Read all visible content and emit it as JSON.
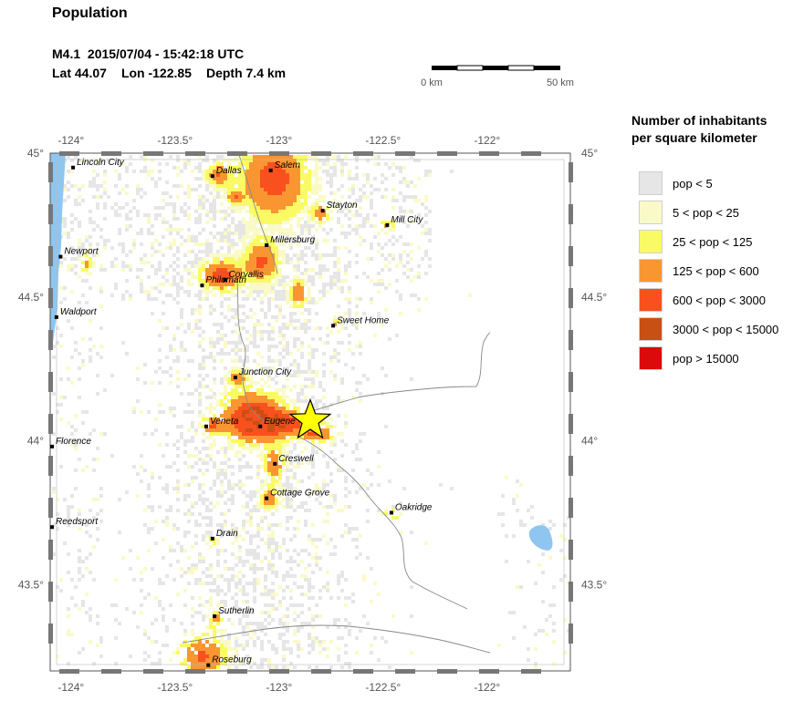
{
  "header": {
    "title": "Population",
    "magnitude": "M4.1",
    "datetime": "2015/07/04 - 15:42:18 UTC",
    "lat_text": "Lat 44.07",
    "lon_text": "Lon -122.85",
    "depth_text": "Depth  7.4 km"
  },
  "scale": {
    "left_label": "0 km",
    "right_label": "50 km",
    "length_km": 50
  },
  "map": {
    "lon_range": [
      -124.1,
      -121.6
    ],
    "lat_range": [
      43.2,
      45.0
    ],
    "lon_ticks": [
      -124.0,
      -123.5,
      -123.0,
      -122.5,
      -122.0
    ],
    "lon_tick_labels": [
      "-124°",
      "-123.5°",
      "-123°",
      "-122.5°",
      "-122°"
    ],
    "lat_ticks": [
      45.0,
      44.5,
      44.0,
      43.5
    ],
    "lat_tick_labels": [
      "45°",
      "44.5°",
      "44°",
      "43.5°"
    ],
    "epicenter": {
      "lon": -122.85,
      "lat": 44.07,
      "color": "#ffff00",
      "symbol": "star-icon"
    },
    "water_color": "#8ec6f0",
    "cities": [
      {
        "name": "Lincoln City",
        "lon": -123.99,
        "lat": 44.95
      },
      {
        "name": "Dallas",
        "lon": -123.32,
        "lat": 44.92
      },
      {
        "name": "Salem",
        "lon": -123.04,
        "lat": 44.94
      },
      {
        "name": "Stayton",
        "lon": -122.79,
        "lat": 44.8
      },
      {
        "name": "Mill City",
        "lon": -122.48,
        "lat": 44.75
      },
      {
        "name": "Newport",
        "lon": -124.05,
        "lat": 44.64
      },
      {
        "name": "Millersburg",
        "lon": -123.06,
        "lat": 44.68
      },
      {
        "name": "Corvallis",
        "lon": -123.26,
        "lat": 44.56
      },
      {
        "name": "Philomath",
        "lon": -123.37,
        "lat": 44.54
      },
      {
        "name": "Waldport",
        "lon": -124.07,
        "lat": 44.43
      },
      {
        "name": "Sweet Home",
        "lon": -122.74,
        "lat": 44.4
      },
      {
        "name": "Junction City",
        "lon": -123.21,
        "lat": 44.22
      },
      {
        "name": "Veneta",
        "lon": -123.35,
        "lat": 44.05
      },
      {
        "name": "Eugene",
        "lon": -123.09,
        "lat": 44.05
      },
      {
        "name": "Florence",
        "lon": -124.1,
        "lat": 43.98
      },
      {
        "name": "Creswell",
        "lon": -123.02,
        "lat": 43.92
      },
      {
        "name": "Cottage Grove",
        "lon": -123.06,
        "lat": 43.8
      },
      {
        "name": "Oakridge",
        "lon": -122.46,
        "lat": 43.75
      },
      {
        "name": "Reedsport",
        "lon": -124.1,
        "lat": 43.7
      },
      {
        "name": "Drain",
        "lon": -123.32,
        "lat": 43.66
      },
      {
        "name": "Sutherlin",
        "lon": -123.31,
        "lat": 43.39
      },
      {
        "name": "Roseburg",
        "lon": -123.34,
        "lat": 43.22
      }
    ]
  },
  "legend": {
    "title_line1": "Number of inhabitants",
    "title_line2": "per square kilometer",
    "items": [
      {
        "label": "pop < 5",
        "color": "#e6e6e6"
      },
      {
        "label": "5 < pop < 25",
        "color": "#fafac8"
      },
      {
        "label": "25 < pop < 125",
        "color": "#fafa64"
      },
      {
        "label": "125 < pop < 600",
        "color": "#fa9632"
      },
      {
        "label": "600 < pop < 3000",
        "color": "#fa501e"
      },
      {
        "label": "3000 < pop < 15000",
        "color": "#c85014"
      },
      {
        "label": "pop > 15000",
        "color": "#dc0a0a"
      }
    ]
  }
}
